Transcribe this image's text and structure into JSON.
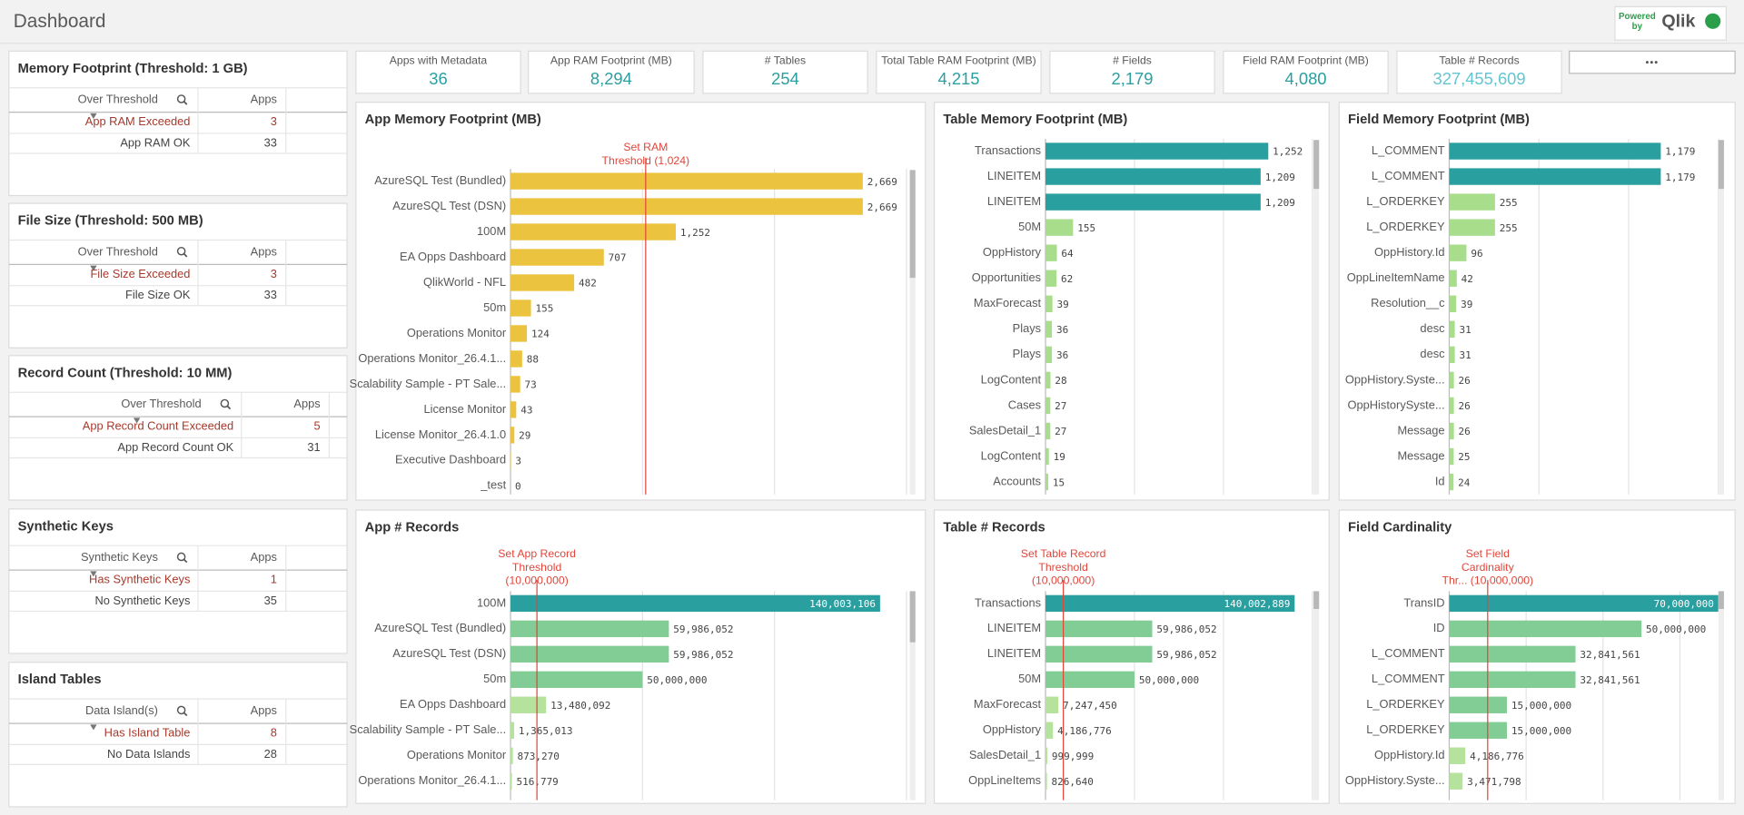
{
  "header": {
    "title": "Dashboard",
    "logo_lines": [
      "Powered",
      "by"
    ],
    "logo_brand": "Qlik"
  },
  "kpis": [
    {
      "label": "Apps with Metadata",
      "value": "36",
      "color": "#2a9fa0"
    },
    {
      "label": "App RAM Footprint (MB)",
      "value": "8,294",
      "color": "#2a9fa0"
    },
    {
      "label": "# Tables",
      "value": "254",
      "color": "#2a9fa0"
    },
    {
      "label": "Total Table RAM Footprint (MB)",
      "value": "4,215",
      "color": "#2a9fa0"
    },
    {
      "label": "# Fields",
      "value": "2,179",
      "color": "#2a9fa0"
    },
    {
      "label": "Field RAM Footprint (MB)",
      "value": "4,080",
      "color": "#2a9fa0"
    },
    {
      "label": "Table # Records",
      "value": "327,455,609",
      "color": "#62c6d2"
    }
  ],
  "tables": [
    {
      "title": "Memory Footprint (Threshold: 1 GB)",
      "columns": [
        "Over Threshold",
        "Apps"
      ],
      "rows": [
        [
          "App RAM Exceeded",
          3
        ],
        [
          "App RAM OK",
          33
        ]
      ]
    },
    {
      "title": "File Size (Threshold: 500 MB)",
      "columns": [
        "Over Threshold",
        "Apps"
      ],
      "rows": [
        [
          "File Size Exceeded",
          3
        ],
        [
          "File Size OK",
          33
        ]
      ]
    },
    {
      "title": "Record Count (Threshold: 10 MM)",
      "columns": [
        "Over Threshold",
        "Apps"
      ],
      "rows": [
        [
          "App Record Count Exceeded",
          5
        ],
        [
          "App Record Count OK",
          31
        ]
      ]
    },
    {
      "title": "Synthetic Keys",
      "columns": [
        "Synthetic Keys",
        "Apps"
      ],
      "rows": [
        [
          "Has Synthetic Keys",
          1
        ],
        [
          "No Synthetic Keys",
          35
        ]
      ]
    },
    {
      "title": "Island Tables",
      "columns": [
        "Data Island(s)",
        "Apps"
      ],
      "rows": [
        [
          "Has Island Table",
          8
        ],
        [
          "No Data Islands",
          28
        ]
      ]
    }
  ],
  "charts": [
    {
      "type": "bar",
      "title": "App Memory Footprint (MB)",
      "categories": [
        "AzureSQL Test (Bundled)",
        "AzureSQL Test (DSN)",
        "100M",
        "EA Opps Dashboard",
        "QlikWorld - NFL",
        "50m",
        "Operations Monitor",
        "Operations Monitor_26.4.1...",
        "Scalability Sample - PT Sale...",
        "License Monitor",
        "License Monitor_26.4.1.0",
        "Executive Dashboard",
        "_test"
      ],
      "values": [
        2669,
        2669,
        1252,
        707,
        482,
        155,
        124,
        88,
        73,
        43,
        29,
        3,
        0
      ],
      "value_labels": [
        "2,669",
        "2,669",
        "1,252",
        "707",
        "482",
        "155",
        "124",
        "88",
        "73",
        "43",
        "29",
        "3",
        "0"
      ],
      "colors": [
        "#ebc33f",
        "#ebc33f",
        "#ebc33f",
        "#ebc33f",
        "#ebc33f",
        "#ebc33f",
        "#ebc33f",
        "#ebc33f",
        "#ebc33f",
        "#ebc33f",
        "#ebc33f",
        "#ebc33f",
        "#ebc33f"
      ],
      "xlim": [
        0,
        3000
      ],
      "xticks": [
        0,
        1000,
        2000,
        3000
      ],
      "grid": true,
      "threshold": {
        "value": 1024,
        "label": [
          "Set RAM",
          "Threshold (1,024)"
        ]
      }
    },
    {
      "type": "bar",
      "title": "Table Memory Footprint (MB)",
      "categories": [
        "Transactions",
        "LINEITEM",
        "LINEITEM",
        "50M",
        "OppHistory",
        "Opportunities",
        "MaxForecast",
        "Plays",
        "Plays",
        "LogContent",
        "Cases",
        "SalesDetail_1",
        "LogContent",
        "Accounts"
      ],
      "values": [
        1252,
        1209,
        1209,
        155,
        64,
        62,
        39,
        36,
        36,
        28,
        27,
        27,
        19,
        15
      ],
      "value_labels": [
        "1,252",
        "1,209",
        "1,209",
        "155",
        "64",
        "62",
        "39",
        "36",
        "36",
        "28",
        "27",
        "27",
        "19",
        "15"
      ],
      "colors": [
        "#2a9fa0",
        "#2a9fa0",
        "#2a9fa0",
        "#a8dd8c",
        "#a8dd8c",
        "#a8dd8c",
        "#a8dd8c",
        "#a8dd8c",
        "#a8dd8c",
        "#a8dd8c",
        "#a8dd8c",
        "#a8dd8c",
        "#a8dd8c",
        "#a8dd8c"
      ],
      "xlim": [
        0,
        1500
      ],
      "xticks": [
        0,
        500,
        1000,
        1500
      ],
      "grid": true
    },
    {
      "type": "bar",
      "title": "Field Memory Footprint (MB)",
      "categories": [
        "L_COMMENT",
        "L_COMMENT",
        "L_ORDERKEY",
        "L_ORDERKEY",
        "OppHistory.Id",
        "OppLineItemName",
        "Resolution__c",
        "desc",
        "desc",
        "OppHistory.Syste...",
        "OppHistorySyste...",
        "Message",
        "Message",
        "Id"
      ],
      "values": [
        1179,
        1179,
        255,
        255,
        96,
        42,
        39,
        31,
        31,
        26,
        26,
        26,
        25,
        24
      ],
      "value_labels": [
        "1,179",
        "1,179",
        "255",
        "255",
        "96",
        "42",
        "39",
        "31",
        "31",
        "26",
        "26",
        "26",
        "25",
        "24"
      ],
      "colors": [
        "#2a9fa0",
        "#2a9fa0",
        "#a8dd8c",
        "#a8dd8c",
        "#a8dd8c",
        "#a8dd8c",
        "#a8dd8c",
        "#a8dd8c",
        "#a8dd8c",
        "#a8dd8c",
        "#a8dd8c",
        "#a8dd8c",
        "#a8dd8c",
        "#a8dd8c"
      ],
      "xlim": [
        0,
        1500
      ],
      "xticks": [
        0,
        500,
        1000,
        1500
      ],
      "grid": true
    },
    {
      "type": "bar",
      "title": "App # Records",
      "categories": [
        "100M",
        "AzureSQL Test (Bundled)",
        "AzureSQL Test (DSN)",
        "50m",
        "EA Opps Dashboard",
        "Scalability Sample - PT Sale...",
        "Operations Monitor",
        "Operations Monitor_26.4.1..."
      ],
      "values": [
        140003106,
        59986052,
        59986052,
        50000000,
        13480092,
        1365013,
        873270,
        516779
      ],
      "value_labels": [
        "140,003,106",
        "59,986,052",
        "59,986,052",
        "50,000,000",
        "13,480,092",
        "1,365,013",
        "873,270",
        "516,779"
      ],
      "colors": [
        "#2a9fa0",
        "#82cc95",
        "#82cc95",
        "#82cc95",
        "#b5e29c",
        "#b5e29c",
        "#b5e29c",
        "#b5e29c"
      ],
      "xlim": [
        0,
        150000000
      ],
      "xticks": [
        0,
        50000000,
        100000000,
        150000000
      ],
      "grid": true,
      "threshold": {
        "value": 10000000,
        "label": [
          "Set App Record",
          "Threshold",
          "(10,000,000)"
        ]
      }
    },
    {
      "type": "bar",
      "title": "Table # Records",
      "categories": [
        "Transactions",
        "LINEITEM",
        "LINEITEM",
        "50M",
        "MaxForecast",
        "OppHistory",
        "SalesDetail_1",
        "OppLineItems"
      ],
      "values": [
        140002889,
        59986052,
        59986052,
        50000000,
        7247450,
        4186776,
        999999,
        826640
      ],
      "value_labels": [
        "140,002,889",
        "59,986,052",
        "59,986,052",
        "50,000,000",
        "7,247,450",
        "4,186,776",
        "999,999",
        "826,640"
      ],
      "colors": [
        "#2a9fa0",
        "#82cc95",
        "#82cc95",
        "#82cc95",
        "#b5e29c",
        "#b5e29c",
        "#b5e29c",
        "#b5e29c"
      ],
      "xlim": [
        0,
        150000000
      ],
      "xticks": [
        0,
        50000000,
        100000000,
        150000000
      ],
      "grid": true,
      "threshold": {
        "value": 10000000,
        "label": [
          "Set Table Record",
          "Threshold",
          "(10,000,000)"
        ]
      }
    },
    {
      "type": "bar",
      "title": "Field Cardinality",
      "categories": [
        "TransID",
        "ID",
        "L_COMMENT",
        "L_COMMENT",
        "L_ORDERKEY",
        "L_ORDERKEY",
        "OppHistory.Id",
        "OppHistory.Syste..."
      ],
      "values": [
        70000000,
        50000000,
        32841561,
        32841561,
        15000000,
        15000000,
        4186776,
        3471798
      ],
      "value_labels": [
        "70,000,000",
        "50,000,000",
        "32,841,561",
        "32,841,561",
        "15,000,000",
        "15,000,000",
        "4,186,776",
        "3,471,798"
      ],
      "colors": [
        "#2a9fa0",
        "#82cc95",
        "#82cc95",
        "#82cc95",
        "#82cc95",
        "#82cc95",
        "#b5e29c",
        "#b5e29c"
      ],
      "xlim": [
        0,
        70000000
      ],
      "xticks": [
        0,
        20000000,
        40000000,
        60000000
      ],
      "grid": true,
      "threshold": {
        "value": 10000000,
        "label": [
          "Set Field",
          "Cardinality",
          "Thr... (10,000,000)"
        ]
      }
    }
  ]
}
